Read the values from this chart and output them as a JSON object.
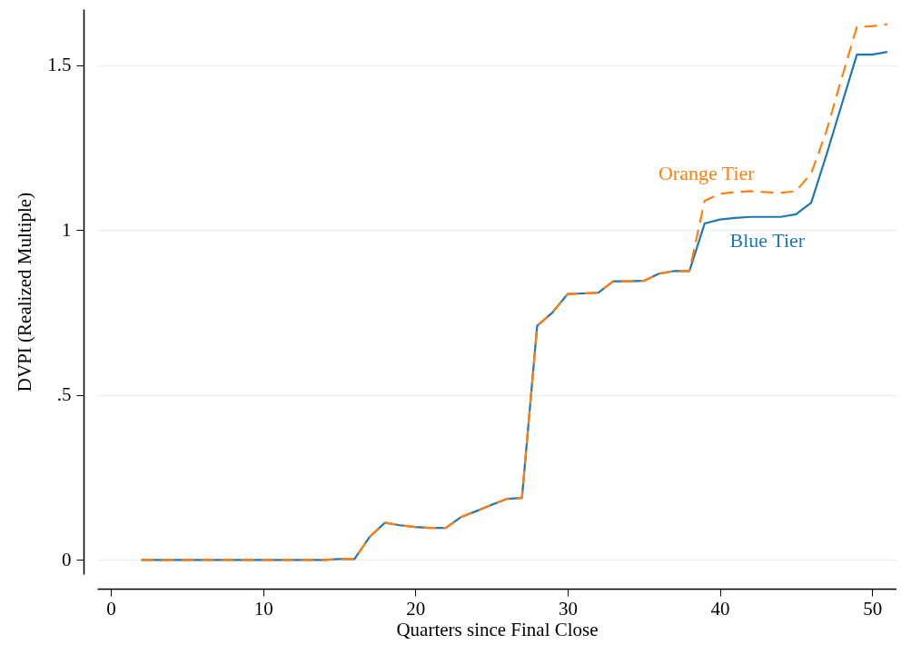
{
  "chart_data": {
    "type": "line",
    "xlabel": "Quarters since Final Close",
    "ylabel": "DVPI (Realized Multiple)",
    "x": [
      2,
      3,
      4,
      5,
      6,
      7,
      8,
      9,
      10,
      11,
      12,
      13,
      14,
      15,
      16,
      17,
      18,
      19,
      20,
      21,
      22,
      23,
      24,
      25,
      26,
      27,
      28,
      29,
      30,
      31,
      32,
      33,
      34,
      35,
      36,
      37,
      38,
      39,
      40,
      41,
      42,
      43,
      44,
      45,
      46,
      47,
      48,
      49,
      50,
      51
    ],
    "series": [
      {
        "name": "Blue Tier",
        "color": "#1f77b4",
        "line_style": "solid",
        "values": [
          0,
          0,
          0,
          0,
          0,
          0,
          0,
          0,
          0,
          0,
          0,
          0,
          0,
          0.003,
          0.003,
          0.07,
          0.113,
          0.105,
          0.1,
          0.097,
          0.097,
          0.13,
          0.148,
          0.167,
          0.185,
          0.188,
          0.71,
          0.75,
          0.806,
          0.808,
          0.81,
          0.845,
          0.845,
          0.846,
          0.868,
          0.876,
          0.876,
          1.02,
          1.032,
          1.037,
          1.04,
          1.04,
          1.04,
          1.048,
          1.083,
          1.228,
          1.38,
          1.532,
          1.532,
          1.54
        ]
      },
      {
        "name": "Orange Tier",
        "color": "#ff7f0e",
        "line_style": "dashed",
        "values": [
          0,
          0,
          0,
          0,
          0,
          0,
          0,
          0,
          0,
          0,
          0,
          0,
          0,
          0.003,
          0.003,
          0.07,
          0.113,
          0.105,
          0.1,
          0.097,
          0.097,
          0.13,
          0.148,
          0.167,
          0.185,
          0.188,
          0.71,
          0.75,
          0.806,
          0.808,
          0.81,
          0.845,
          0.845,
          0.846,
          0.868,
          0.876,
          0.876,
          1.089,
          1.11,
          1.115,
          1.118,
          1.115,
          1.113,
          1.118,
          1.172,
          1.3,
          1.46,
          1.616,
          1.618,
          1.624
        ]
      }
    ],
    "xlim": [
      -0.9,
      51.6
    ],
    "xticks": [
      0,
      10,
      20,
      30,
      40,
      50
    ],
    "ylim": [
      -0.043,
      1.67
    ],
    "yticks": [
      0,
      {
        "value": 0.5,
        "label": ".5"
      },
      1,
      1.5
    ],
    "grid": "y"
  }
}
